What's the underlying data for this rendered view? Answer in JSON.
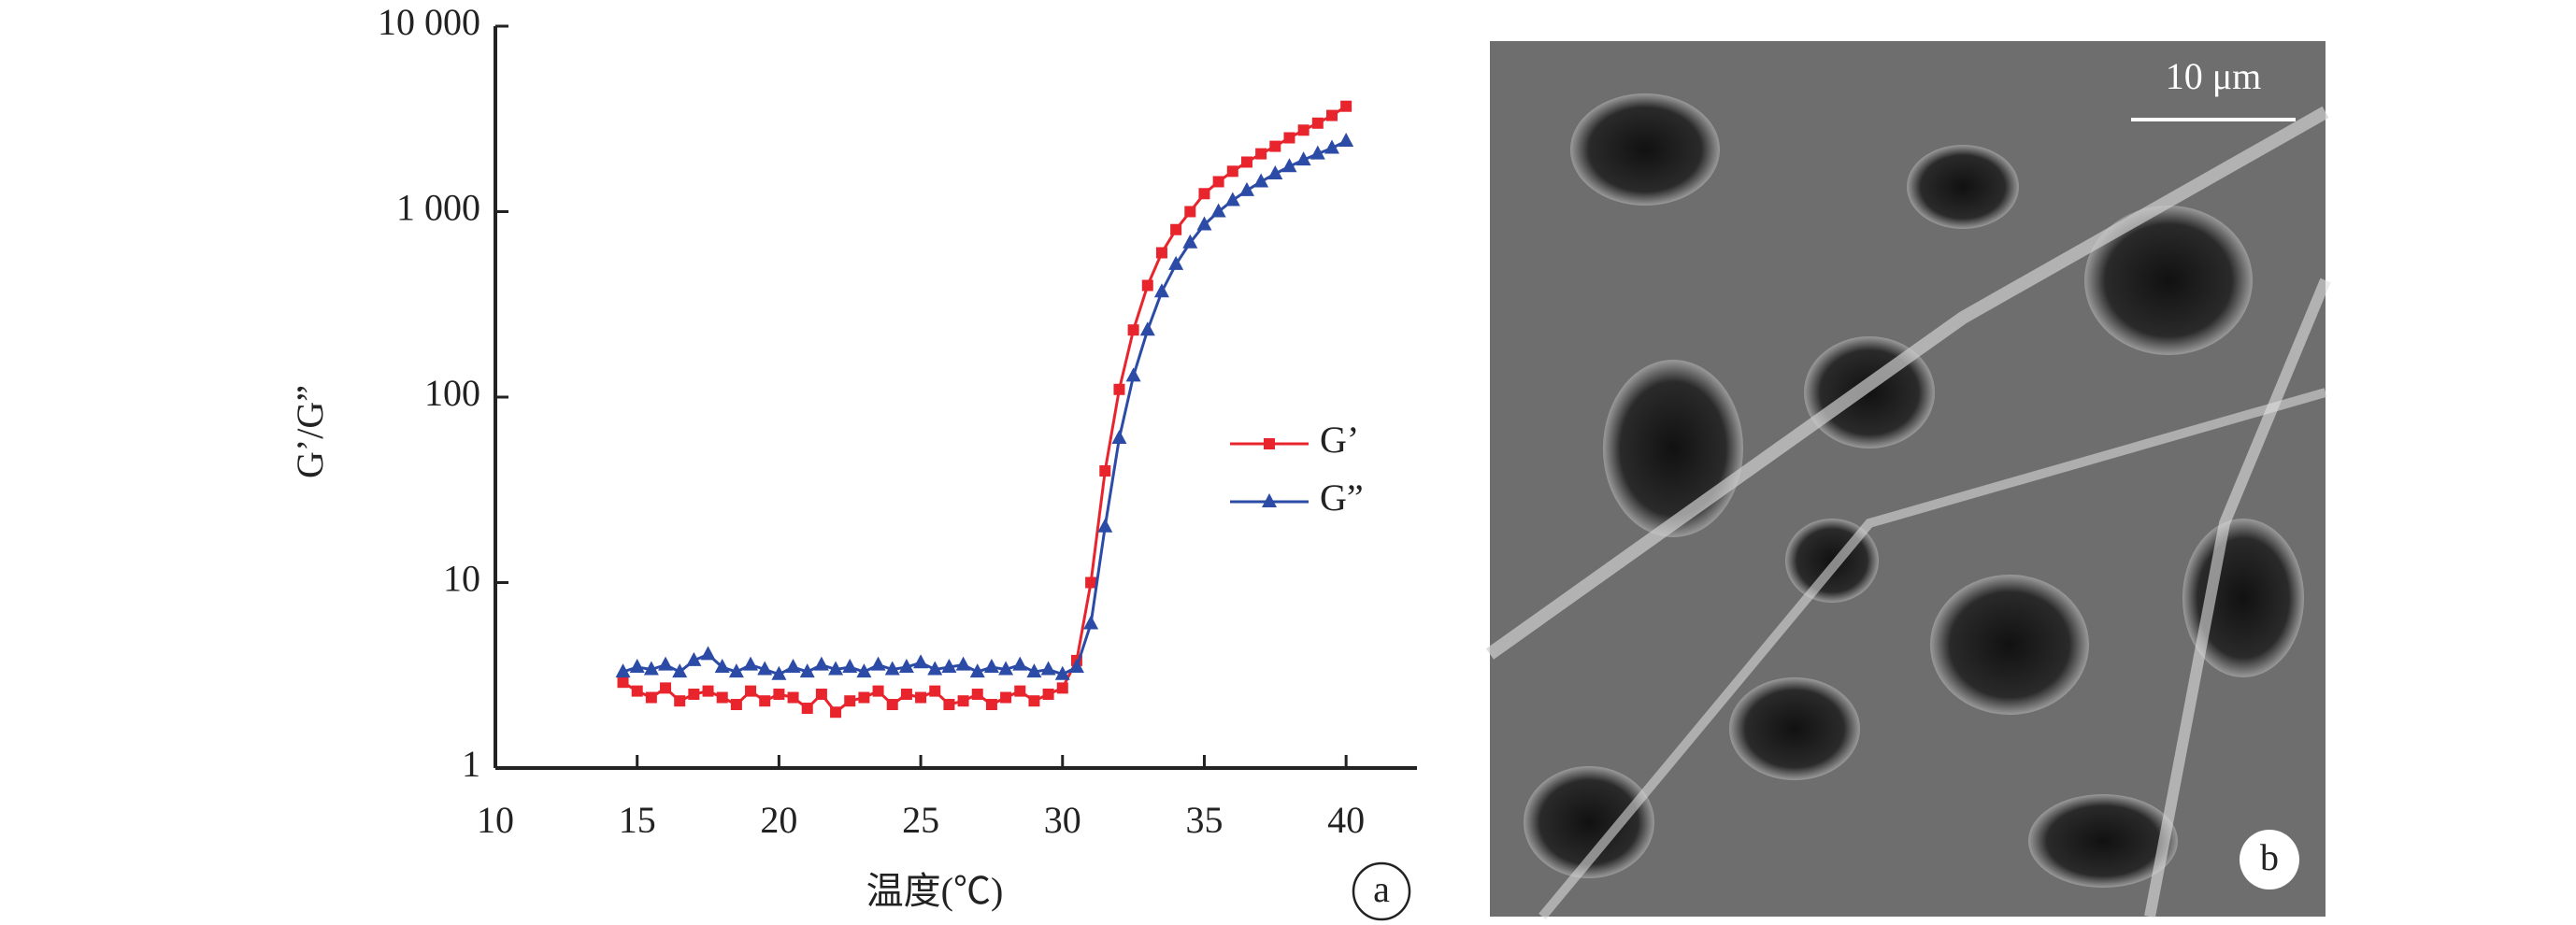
{
  "chart_data": {
    "type": "line",
    "x_label": "温度(℃)",
    "y_label": "G’/G”",
    "panel_label": "a",
    "x": [
      14.5,
      15,
      15.5,
      16,
      16.5,
      17,
      17.5,
      18,
      18.5,
      19,
      19.5,
      20,
      20.5,
      21,
      21.5,
      22,
      22.5,
      23,
      23.5,
      24,
      24.5,
      25,
      25.5,
      26,
      26.5,
      27,
      27.5,
      28,
      28.5,
      29,
      29.5,
      30,
      30.5,
      31,
      31.5,
      32,
      32.5,
      33,
      33.5,
      34,
      34.5,
      35,
      35.5,
      36,
      36.5,
      37,
      37.5,
      38,
      38.5,
      39,
      39.5,
      40
    ],
    "series": [
      {
        "name": "G’",
        "color": "#e8242c",
        "marker": "square",
        "values": [
          2.9,
          2.6,
          2.4,
          2.7,
          2.3,
          2.5,
          2.6,
          2.4,
          2.2,
          2.6,
          2.3,
          2.5,
          2.4,
          2.1,
          2.5,
          2.0,
          2.3,
          2.4,
          2.6,
          2.2,
          2.5,
          2.4,
          2.6,
          2.2,
          2.3,
          2.5,
          2.2,
          2.4,
          2.6,
          2.3,
          2.5,
          2.7,
          3.8,
          10,
          40,
          110,
          230,
          400,
          600,
          800,
          1000,
          1250,
          1450,
          1650,
          1850,
          2050,
          2250,
          2500,
          2750,
          3000,
          3300,
          3700
        ]
      },
      {
        "name": "G”",
        "color": "#2b4ba6",
        "marker": "triangle",
        "values": [
          3.3,
          3.5,
          3.4,
          3.6,
          3.3,
          3.8,
          4.1,
          3.5,
          3.3,
          3.6,
          3.4,
          3.2,
          3.5,
          3.3,
          3.6,
          3.4,
          3.5,
          3.3,
          3.6,
          3.4,
          3.5,
          3.7,
          3.4,
          3.5,
          3.6,
          3.3,
          3.5,
          3.4,
          3.6,
          3.3,
          3.4,
          3.2,
          3.5,
          6,
          20,
          60,
          130,
          230,
          370,
          520,
          680,
          850,
          1000,
          1150,
          1300,
          1450,
          1600,
          1750,
          1900,
          2050,
          2200,
          2400
        ]
      }
    ],
    "xlim": [
      10,
      42.5
    ],
    "xticks": [
      10,
      15,
      20,
      25,
      30,
      35,
      40
    ],
    "ylim": [
      1,
      10000
    ],
    "log_y": true,
    "yticks": [
      1,
      10,
      100,
      {
        "value": 1000,
        "label": "1 000"
      },
      {
        "value": 10000,
        "label": "10 000"
      }
    ],
    "grid": false
  },
  "image_panel": {
    "scale_bar": "10 μm",
    "panel_label": "b"
  }
}
